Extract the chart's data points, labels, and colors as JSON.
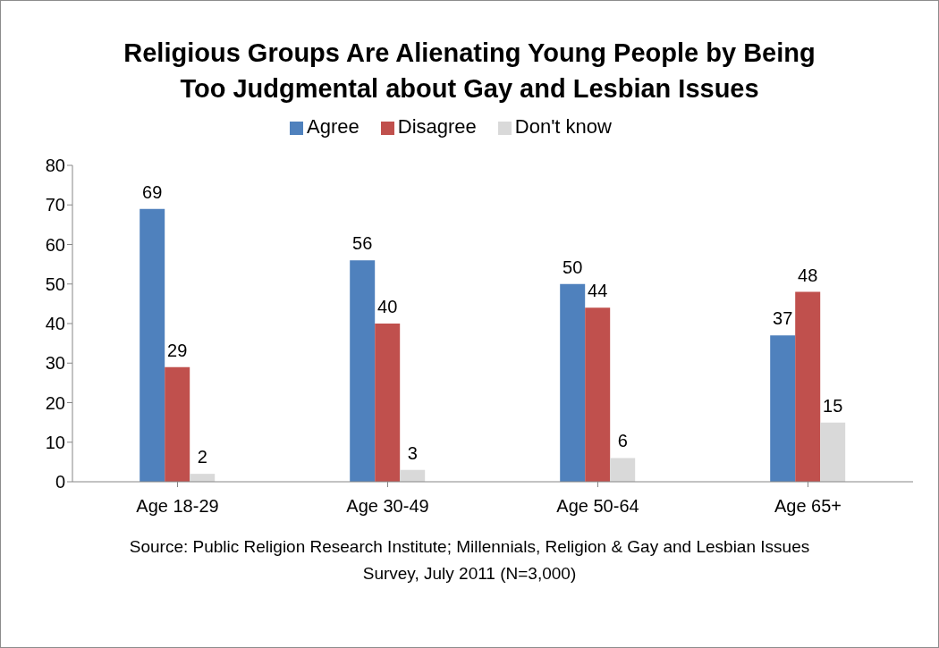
{
  "chart_data": {
    "type": "bar",
    "title": "Religious Groups Are Alienating Young People by Being Too Judgmental about Gay and Lesbian Issues",
    "categories": [
      "Age 18-29",
      "Age 30-49",
      "Age 50-64",
      "Age 65+"
    ],
    "series": [
      {
        "name": "Agree",
        "color": "#4f81bd",
        "values": [
          69,
          56,
          50,
          37
        ]
      },
      {
        "name": "Disagree",
        "color": "#c0504d",
        "values": [
          29,
          40,
          44,
          48
        ]
      },
      {
        "name": "Don't know",
        "color": "#d9d9d9",
        "values": [
          2,
          3,
          6,
          15
        ]
      }
    ],
    "ylim": [
      0,
      80
    ],
    "yticks": [
      0,
      10,
      20,
      30,
      40,
      50,
      60,
      70,
      80
    ],
    "grid": false,
    "legend": "top",
    "data_labels": true,
    "annotations": [
      "Source: Public Religion Research Institute; Millennials, Religion & Gay and Lesbian Issues Survey, July 2011 (N=3,000)"
    ]
  }
}
